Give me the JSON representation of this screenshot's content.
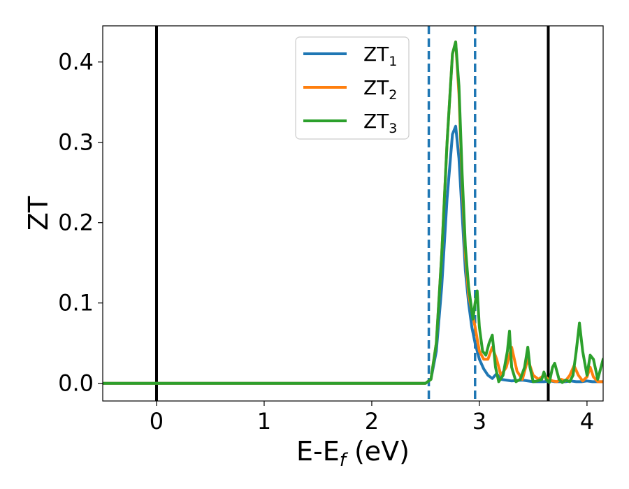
{
  "chart_data": {
    "type": "line",
    "xlabel": "E-E",
    "xlabel_sub": "f",
    "xlabel_unit": "(eV)",
    "ylabel": "ZT",
    "xlim": [
      -0.5,
      4.15
    ],
    "ylim": [
      -0.022,
      0.445
    ],
    "xticks": [
      0,
      1,
      2,
      3,
      4
    ],
    "xtick_labels": [
      "0",
      "1",
      "2",
      "3",
      "4"
    ],
    "yticks": [
      0.0,
      0.1,
      0.2,
      0.3,
      0.4
    ],
    "ytick_labels": [
      "0.0",
      "0.1",
      "0.2",
      "0.3",
      "0.4"
    ],
    "grid": false,
    "legend_position": "top-center",
    "vlines": [
      {
        "x": 0.0,
        "color": "#000000",
        "style": "solid"
      },
      {
        "x": 2.53,
        "color": "#1f77b4",
        "style": "dashed"
      },
      {
        "x": 2.96,
        "color": "#1f77b4",
        "style": "dashed"
      },
      {
        "x": 3.64,
        "color": "#000000",
        "style": "solid"
      }
    ],
    "series": [
      {
        "name": "ZT",
        "sub": "1",
        "color": "#1f77b4",
        "x": [
          -0.5,
          2.4,
          2.5,
          2.55,
          2.6,
          2.65,
          2.7,
          2.75,
          2.78,
          2.81,
          2.84,
          2.87,
          2.9,
          2.93,
          2.96,
          3.0,
          3.04,
          3.08,
          3.12,
          3.16,
          3.2,
          3.3,
          3.4,
          3.5,
          3.6,
          3.66,
          3.7,
          3.75,
          3.8,
          3.85,
          3.9,
          3.95,
          4.0,
          4.05,
          4.1,
          4.15
        ],
        "y": [
          0.0,
          0.0,
          0.0,
          0.005,
          0.04,
          0.12,
          0.23,
          0.31,
          0.32,
          0.28,
          0.21,
          0.14,
          0.1,
          0.07,
          0.05,
          0.03,
          0.018,
          0.01,
          0.006,
          0.012,
          0.005,
          0.003,
          0.004,
          0.002,
          0.002,
          0.003,
          0.002,
          0.002,
          0.002,
          0.003,
          0.002,
          0.002,
          0.003,
          0.002,
          0.002,
          0.002
        ]
      },
      {
        "name": "ZT",
        "sub": "2",
        "color": "#ff7f0e",
        "x": [
          -0.5,
          2.4,
          2.5,
          2.55,
          2.6,
          2.65,
          2.7,
          2.75,
          2.78,
          2.81,
          2.84,
          2.87,
          2.9,
          2.93,
          2.96,
          3.0,
          3.04,
          3.08,
          3.12,
          3.16,
          3.2,
          3.25,
          3.3,
          3.35,
          3.4,
          3.45,
          3.5,
          3.55,
          3.6,
          3.64,
          3.68,
          3.72,
          3.76,
          3.8,
          3.84,
          3.88,
          3.92,
          3.96,
          4.0,
          4.03,
          4.06,
          4.1,
          4.15
        ],
        "y": [
          0.0,
          0.0,
          0.0,
          0.005,
          0.05,
          0.16,
          0.3,
          0.41,
          0.425,
          0.36,
          0.25,
          0.16,
          0.11,
          0.09,
          0.07,
          0.04,
          0.03,
          0.03,
          0.045,
          0.03,
          0.01,
          0.02,
          0.045,
          0.015,
          0.005,
          0.03,
          0.01,
          0.005,
          0.01,
          0.005,
          0.003,
          0.002,
          0.005,
          0.003,
          0.01,
          0.022,
          0.01,
          0.003,
          0.008,
          0.02,
          0.008,
          0.002,
          0.002
        ]
      },
      {
        "name": "ZT",
        "sub": "3",
        "color": "#2ca02c",
        "x": [
          -0.5,
          2.4,
          2.5,
          2.55,
          2.6,
          2.65,
          2.7,
          2.75,
          2.78,
          2.81,
          2.84,
          2.87,
          2.9,
          2.92,
          2.94,
          2.96,
          2.98,
          3.0,
          3.03,
          3.06,
          3.09,
          3.12,
          3.15,
          3.18,
          3.22,
          3.26,
          3.28,
          3.3,
          3.34,
          3.38,
          3.42,
          3.45,
          3.47,
          3.5,
          3.54,
          3.58,
          3.6,
          3.62,
          3.65,
          3.68,
          3.7,
          3.74,
          3.77,
          3.8,
          3.84,
          3.87,
          3.9,
          3.93,
          3.96,
          4.0,
          4.03,
          4.06,
          4.1,
          4.15
        ],
        "y": [
          0.0,
          0.0,
          0.0,
          0.005,
          0.05,
          0.16,
          0.3,
          0.41,
          0.425,
          0.37,
          0.26,
          0.17,
          0.12,
          0.1,
          0.08,
          0.1,
          0.115,
          0.07,
          0.04,
          0.035,
          0.05,
          0.06,
          0.02,
          0.002,
          0.01,
          0.04,
          0.065,
          0.02,
          0.002,
          0.005,
          0.02,
          0.045,
          0.02,
          0.002,
          0.003,
          0.005,
          0.014,
          0.005,
          0.001,
          0.02,
          0.025,
          0.005,
          0.001,
          0.004,
          0.002,
          0.01,
          0.04,
          0.075,
          0.04,
          0.01,
          0.035,
          0.03,
          0.005,
          0.03
        ]
      }
    ]
  }
}
